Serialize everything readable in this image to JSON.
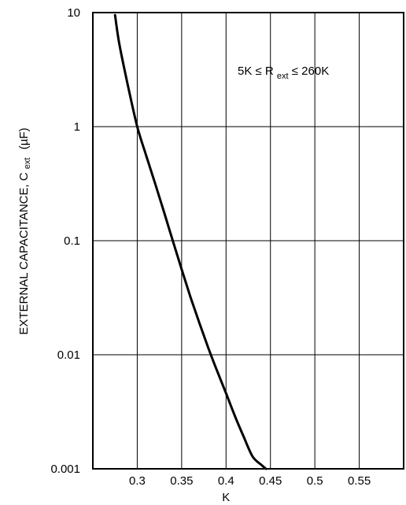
{
  "chart_data": {
    "type": "line",
    "title": "",
    "xlabel": "K",
    "ylabel_main": "EXTERNAL CAPACITANCE, C",
    "ylabel_sub": "ext",
    "ylabel_unit": "(µF)",
    "x_scale": "linear",
    "y_scale": "log",
    "xlim": [
      0.25,
      0.6
    ],
    "ylim": [
      0.001,
      10
    ],
    "x_ticks": [
      0.3,
      0.35,
      0.4,
      0.45,
      0.5,
      0.55
    ],
    "x_tick_labels": [
      "0.3",
      "0.35",
      "0.4",
      "0.45",
      "0.5",
      "0.55"
    ],
    "y_ticks": [
      0.001,
      0.01,
      0.1,
      1,
      10
    ],
    "y_tick_labels": [
      "0.001",
      "0.01",
      "0.1",
      "1",
      "10"
    ],
    "grid": true,
    "annotation": {
      "prefix": "5K ≤ R",
      "sub": "ext",
      "suffix": " ≤ 260K"
    },
    "series": [
      {
        "color": "#000000",
        "x": [
          0.275,
          0.28,
          0.29,
          0.3,
          0.31,
          0.32,
          0.33,
          0.34,
          0.35,
          0.36,
          0.37,
          0.38,
          0.39,
          0.4,
          0.41,
          0.42,
          0.43,
          0.44,
          0.445
        ],
        "y": [
          9.5,
          5.2,
          2.2,
          1.0,
          0.56,
          0.32,
          0.18,
          0.1,
          0.056,
          0.032,
          0.019,
          0.0115,
          0.0072,
          0.0046,
          0.0029,
          0.0019,
          0.00128,
          0.00108,
          0.001
        ]
      }
    ]
  }
}
